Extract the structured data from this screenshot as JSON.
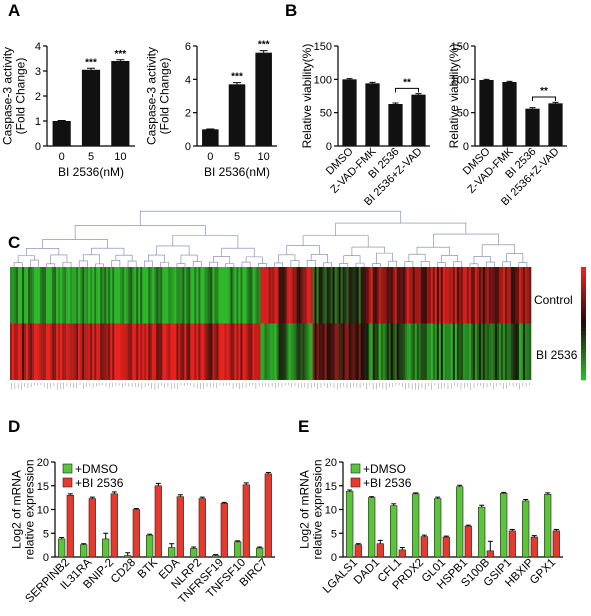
{
  "panels": {
    "A": "A",
    "B": "B",
    "C": "C",
    "D": "D",
    "E": "E"
  },
  "colors": {
    "dmso": "#5cc43a",
    "bi2536": "#e8392c",
    "heat_high": "#e8231f",
    "heat_low": "#2db82c",
    "heat_mid": "#1a0d0a",
    "bar": "#111111"
  },
  "chart_data": [
    {
      "id": "A1",
      "type": "bar",
      "categories": [
        "0",
        "5",
        "10"
      ],
      "values": [
        1.0,
        3.05,
        3.4
      ],
      "errors": [
        0.02,
        0.06,
        0.05
      ],
      "significance": [
        "",
        "***",
        "***"
      ],
      "xlabel": "BI 2536(nM)",
      "ylabel": "Caspase-3 activity\n(Fold Change)",
      "ylim": [
        0,
        4
      ],
      "yticks": [
        0,
        1,
        2,
        3,
        4
      ]
    },
    {
      "id": "A2",
      "type": "bar",
      "categories": [
        "0",
        "5",
        "10"
      ],
      "values": [
        1.0,
        3.7,
        5.6
      ],
      "errors": [
        0.02,
        0.1,
        0.12
      ],
      "significance": [
        "",
        "***",
        "***"
      ],
      "xlabel": "BI 2536(nM)",
      "ylabel": "Caspase-3 activity\n(Fold Change)",
      "ylim": [
        0,
        6
      ],
      "yticks": [
        0,
        2,
        4,
        6
      ]
    },
    {
      "id": "B1",
      "type": "bar",
      "categories": [
        "DMSO",
        "Z-VAD-FMK",
        "BI 2536",
        "BI 2536+Z-VAD"
      ],
      "values": [
        100,
        94,
        63,
        77
      ],
      "errors": [
        1,
        1.5,
        1.5,
        1.5
      ],
      "bracket": {
        "from": 2,
        "to": 3,
        "label": "**"
      },
      "ylabel": "Relative viability(%)",
      "ylim": [
        0,
        150
      ],
      "yticks": [
        0,
        50,
        100,
        150
      ]
    },
    {
      "id": "B2",
      "type": "bar",
      "categories": [
        "DMSO",
        "Z-VAD-FMK",
        "BI 2536",
        "BI 2536+Z-VAD"
      ],
      "values": [
        99,
        96,
        56,
        64
      ],
      "errors": [
        1,
        1,
        1.5,
        1.5
      ],
      "bracket": {
        "from": 2,
        "to": 3,
        "label": "**"
      },
      "ylabel": "Relative viability(%)",
      "ylim": [
        0,
        150
      ],
      "yticks": [
        0,
        50,
        100,
        150
      ]
    },
    {
      "id": "C",
      "type": "heatmap",
      "rows": [
        "Control",
        "BI 2536"
      ]
    },
    {
      "id": "D",
      "type": "bar",
      "categories": [
        "SERPINB2",
        "IL31RA",
        "BNIP-2",
        "CD28",
        "BTK",
        "EDA",
        "NLRP2",
        "TNFRSF19",
        "TNFSF10",
        "BIRC7"
      ],
      "series": [
        {
          "name": "+DMSO",
          "values": [
            3.8,
            2.6,
            3.8,
            0.3,
            4.6,
            2.0,
            1.8,
            0.3,
            3.2,
            1.9
          ],
          "errors": [
            0.3,
            0.2,
            1.2,
            0.6,
            0.2,
            0.8,
            0.3,
            0.2,
            0.2,
            0.2
          ]
        },
        {
          "name": "+BI 2536",
          "values": [
            13.0,
            12.3,
            13.3,
            10.0,
            15.0,
            12.7,
            12.3,
            11.3,
            15.2,
            17.5
          ],
          "errors": [
            0.3,
            0.3,
            0.4,
            0.2,
            0.5,
            0.4,
            0.3,
            0.2,
            0.4,
            0.3
          ]
        }
      ],
      "ylabel": "Log2 of mRNA\nrelative expression",
      "ylim": [
        0,
        20
      ],
      "yticks": [
        0,
        5,
        10,
        15,
        20
      ],
      "legend": "top-left"
    },
    {
      "id": "E",
      "type": "bar",
      "categories": [
        "LGALS1",
        "DAD1",
        "CFL1",
        "PRDX2",
        "GL01",
        "HSPB1",
        "S100B",
        "GSIP1",
        "HBXIP",
        "GPX1"
      ],
      "series": [
        {
          "name": "+DMSO",
          "values": [
            13.8,
            12.5,
            10.8,
            13.3,
            12.3,
            14.8,
            10.5,
            13.4,
            11.8,
            13.2
          ],
          "errors": [
            0.3,
            0.2,
            0.4,
            0.2,
            0.3,
            0.3,
            0.4,
            0.2,
            0.3,
            0.3
          ]
        },
        {
          "name": "+BI 2536",
          "values": [
            2.6,
            2.8,
            1.5,
            4.3,
            4.2,
            6.5,
            1.3,
            5.5,
            4.2,
            5.5
          ],
          "errors": [
            0.2,
            0.7,
            0.5,
            0.3,
            0.2,
            0.2,
            2.0,
            0.3,
            0.3,
            0.3
          ]
        }
      ],
      "ylabel": "Log2 of mRNA\nrelative expression",
      "ylim": [
        0,
        20
      ],
      "yticks": [
        0,
        5,
        10,
        15,
        20
      ],
      "legend": "top-left"
    }
  ]
}
